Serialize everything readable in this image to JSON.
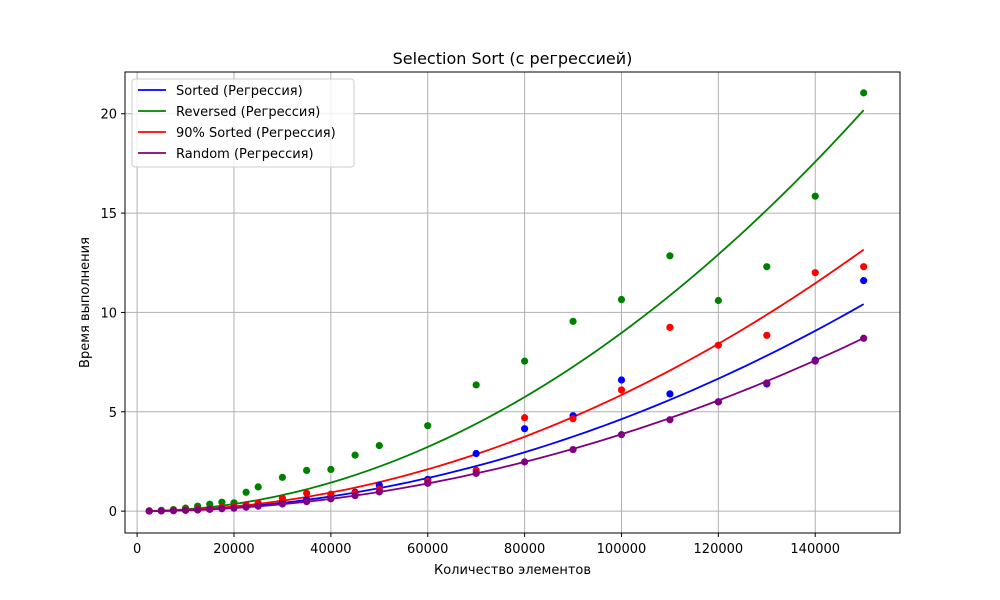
{
  "chart_data": {
    "type": "scatter",
    "title": "Selection Sort (с регрессией)",
    "xlabel": "Количество элементов",
    "ylabel": "Время выполнения",
    "xlim": [
      -2500,
      157500
    ],
    "ylim": [
      -1.1,
      22.1
    ],
    "x_ticks": [
      0,
      20000,
      40000,
      60000,
      80000,
      100000,
      120000,
      140000
    ],
    "y_ticks": [
      0,
      5,
      10,
      15,
      20
    ],
    "grid": true,
    "legend_position": "top-left",
    "x": [
      2500,
      5000,
      7500,
      10000,
      12500,
      15000,
      17500,
      20000,
      22500,
      25000,
      30000,
      35000,
      40000,
      45000,
      50000,
      60000,
      70000,
      80000,
      90000,
      100000,
      110000,
      120000,
      130000,
      140000,
      150000
    ],
    "series": [
      {
        "name": "Sorted (Регрессия)",
        "color": "#0000ff",
        "regression_coef": 4.63e-10,
        "values": [
          0.01,
          0.02,
          0.03,
          0.05,
          0.07,
          0.1,
          0.14,
          0.19,
          0.24,
          0.3,
          0.45,
          0.58,
          0.8,
          0.95,
          1.3,
          1.6,
          2.9,
          4.15,
          4.8,
          6.6,
          5.9,
          5.5,
          6.4,
          7.6,
          11.6
        ]
      },
      {
        "name": "Reversed (Регрессия)",
        "color": "#008000",
        "regression_coef": 8.97e-10,
        "values": [
          0.02,
          0.04,
          0.08,
          0.15,
          0.25,
          0.35,
          0.45,
          0.42,
          0.95,
          1.22,
          1.7,
          2.05,
          2.1,
          2.82,
          3.3,
          4.3,
          6.35,
          7.55,
          9.55,
          10.65,
          12.85,
          10.6,
          12.3,
          15.85,
          21.05
        ]
      },
      {
        "name": "90% Sorted (Регрессия)",
        "color": "#ff0000",
        "regression_coef": 5.85e-10,
        "values": [
          0.01,
          0.02,
          0.04,
          0.06,
          0.09,
          0.13,
          0.18,
          0.24,
          0.32,
          0.4,
          0.65,
          0.9,
          0.85,
          0.9,
          1.1,
          1.5,
          2.05,
          4.7,
          4.65,
          6.1,
          9.25,
          8.35,
          8.85,
          12.0,
          12.3
        ]
      },
      {
        "name": "Random (Регрессия)",
        "color": "#800080",
        "regression_coef": 3.87e-10,
        "values": [
          0.0,
          0.01,
          0.02,
          0.04,
          0.06,
          0.09,
          0.12,
          0.15,
          0.2,
          0.25,
          0.36,
          0.48,
          0.62,
          0.78,
          0.97,
          1.4,
          1.9,
          2.48,
          3.1,
          3.85,
          4.6,
          5.5,
          6.45,
          7.55,
          8.7
        ]
      }
    ]
  }
}
